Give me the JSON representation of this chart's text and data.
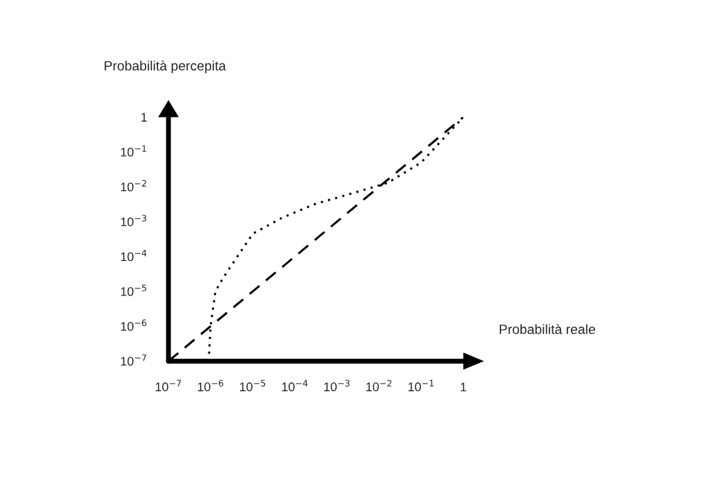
{
  "chart_data": {
    "type": "line",
    "xlabel": "Probabilità reale",
    "ylabel": "Probabilità percepita",
    "log": "xy",
    "grid": false,
    "legend": false,
    "xlim": [
      1e-07,
      1
    ],
    "ylim": [
      1e-07,
      1
    ],
    "xticks": [
      {
        "value": 1e-07,
        "label": "10$^{−7}$"
      },
      {
        "value": 1e-06,
        "label": "10$^{−6}$"
      },
      {
        "value": 1e-05,
        "label": "10$^{−5}$"
      },
      {
        "value": 0.0001,
        "label": "10$^{−4}$"
      },
      {
        "value": 0.001,
        "label": "10$^{−3}$"
      },
      {
        "value": 0.01,
        "label": "10$^{−2}$"
      },
      {
        "value": 0.1,
        "label": "10$^{−1}$"
      },
      1
    ],
    "yticks": [
      {
        "value": 1e-07,
        "label": "10$^{−7}$"
      },
      {
        "value": 1e-06,
        "label": "10$^{−6}$"
      },
      {
        "value": 1e-05,
        "label": "10$^{−5}$"
      },
      {
        "value": 0.0001,
        "label": "10$^{−4}$"
      },
      {
        "value": 0.001,
        "label": "10$^{−3}$"
      },
      {
        "value": 0.01,
        "label": "10$^{−2}$"
      },
      {
        "value": 0.1,
        "label": "10$^{−1}$"
      },
      1
    ],
    "series": [
      {
        "color": "#000000",
        "line_style": "dashed",
        "x": [
          1e-07,
          1
        ],
        "values": [
          1e-07,
          1
        ]
      },
      {
        "color": "#000000",
        "line_style": "dotted",
        "x": [
          9e-07,
          1e-06,
          1.3e-06,
          2e-06,
          5e-06,
          1e-05,
          5e-05,
          0.0003,
          0.0026,
          0.016,
          0.1,
          1
        ],
        "values": [
          1e-07,
          1e-06,
          1e-05,
          2.5e-05,
          0.00013,
          0.00045,
          0.0013,
          0.0032,
          0.0068,
          0.013,
          0.05,
          1
        ]
      }
    ]
  }
}
